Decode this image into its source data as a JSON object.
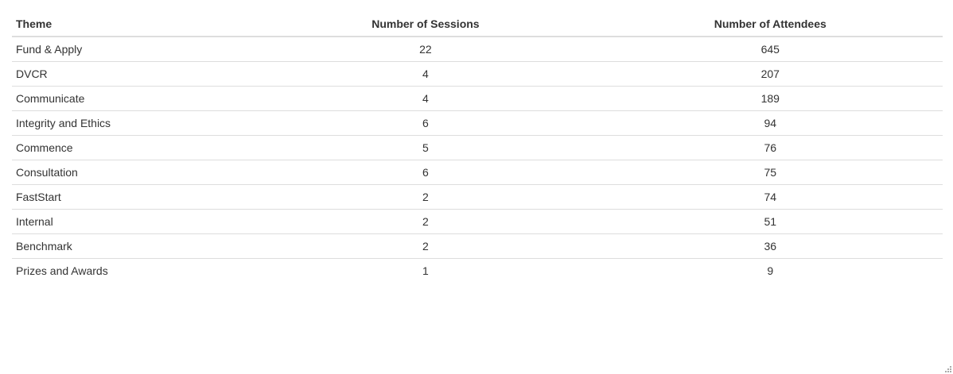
{
  "table": {
    "headers": {
      "theme": "Theme",
      "sessions": "Number of Sessions",
      "attendees": "Number of Attendees"
    },
    "rows": [
      {
        "theme": "Fund & Apply",
        "sessions": "22",
        "attendees": "645"
      },
      {
        "theme": "DVCR",
        "sessions": "4",
        "attendees": "207"
      },
      {
        "theme": "Communicate",
        "sessions": "4",
        "attendees": "189"
      },
      {
        "theme": "Integrity and Ethics",
        "sessions": "6",
        "attendees": "94"
      },
      {
        "theme": "Commence",
        "sessions": "5",
        "attendees": "76"
      },
      {
        "theme": "Consultation",
        "sessions": "6",
        "attendees": "75"
      },
      {
        "theme": "FastStart",
        "sessions": "2",
        "attendees": "74"
      },
      {
        "theme": "Internal",
        "sessions": "2",
        "attendees": "51"
      },
      {
        "theme": "Benchmark",
        "sessions": "2",
        "attendees": "36"
      },
      {
        "theme": "Prizes and Awards",
        "sessions": "1",
        "attendees": "9"
      }
    ]
  },
  "colors": {
    "text": "#333333",
    "border": "#dddddd",
    "background": "#ffffff"
  },
  "icons": {
    "resize": "resize-grip-icon"
  }
}
